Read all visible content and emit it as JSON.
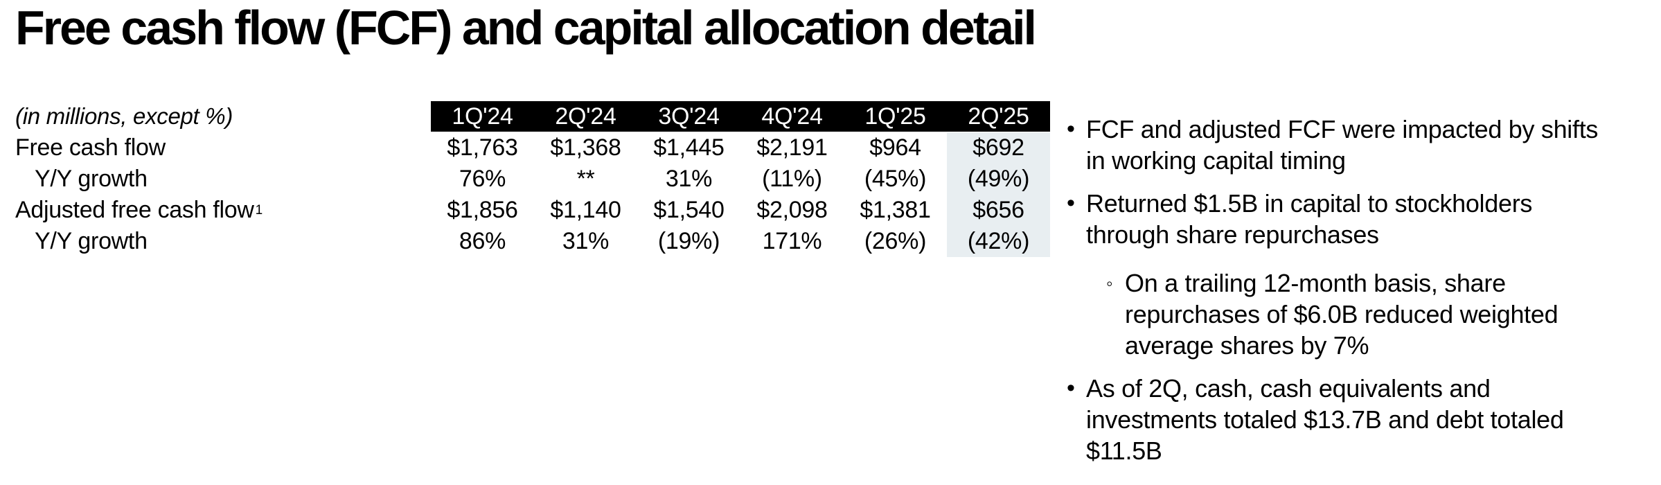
{
  "slide": {
    "title": "Free cash flow (FCF) and capital allocation detail"
  },
  "table": {
    "units_note": "(in millions, except %)",
    "columns": [
      "1Q'24",
      "2Q'24",
      "3Q'24",
      "4Q'24",
      "1Q'25",
      "2Q'25"
    ],
    "rows": [
      {
        "label": "Free cash flow",
        "sup": "",
        "indent": false,
        "values": [
          "$1,763",
          "$1,368",
          "$1,445",
          "$2,191",
          "$964",
          "$692"
        ]
      },
      {
        "label": "Y/Y growth",
        "sup": "",
        "indent": true,
        "values": [
          "76%",
          "**",
          "31%",
          "(11%)",
          "(45%)",
          "(49%)"
        ]
      },
      {
        "label": "Adjusted free cash flow",
        "sup": "1",
        "indent": false,
        "values": [
          "$1,856",
          "$1,140",
          "$1,540",
          "$2,098",
          "$1,381",
          "$656"
        ]
      },
      {
        "label": "Y/Y growth",
        "sup": "",
        "indent": true,
        "values": [
          "86%",
          "31%",
          "(19%)",
          "171%",
          "(26%)",
          "(42%)"
        ]
      }
    ],
    "highlighted_column": "2Q'25",
    "colors": {
      "header_bg": "#000000",
      "header_text": "#ffffff",
      "highlight_bg": "#e8eef1",
      "text": "#000000"
    }
  },
  "bullets": {
    "marker": "•",
    "sub_marker": "◦",
    "items": [
      {
        "level": 1,
        "lines": [
          "FCF and adjusted FCF were impacted by shifts",
          "in working capital timing"
        ]
      },
      {
        "level": 1,
        "lines": [
          "Returned $1.5B in capital to stockholders",
          "through share repurchases"
        ]
      },
      {
        "level": 2,
        "lines": [
          "On a trailing 12-month basis, share",
          "repurchases of $6.0B reduced weighted",
          "average shares by 7%"
        ]
      },
      {
        "level": 1,
        "lines": [
          "As of 2Q, cash, cash equivalents and",
          "investments totaled $13.7B and debt totaled",
          "$11.5B"
        ]
      }
    ]
  }
}
